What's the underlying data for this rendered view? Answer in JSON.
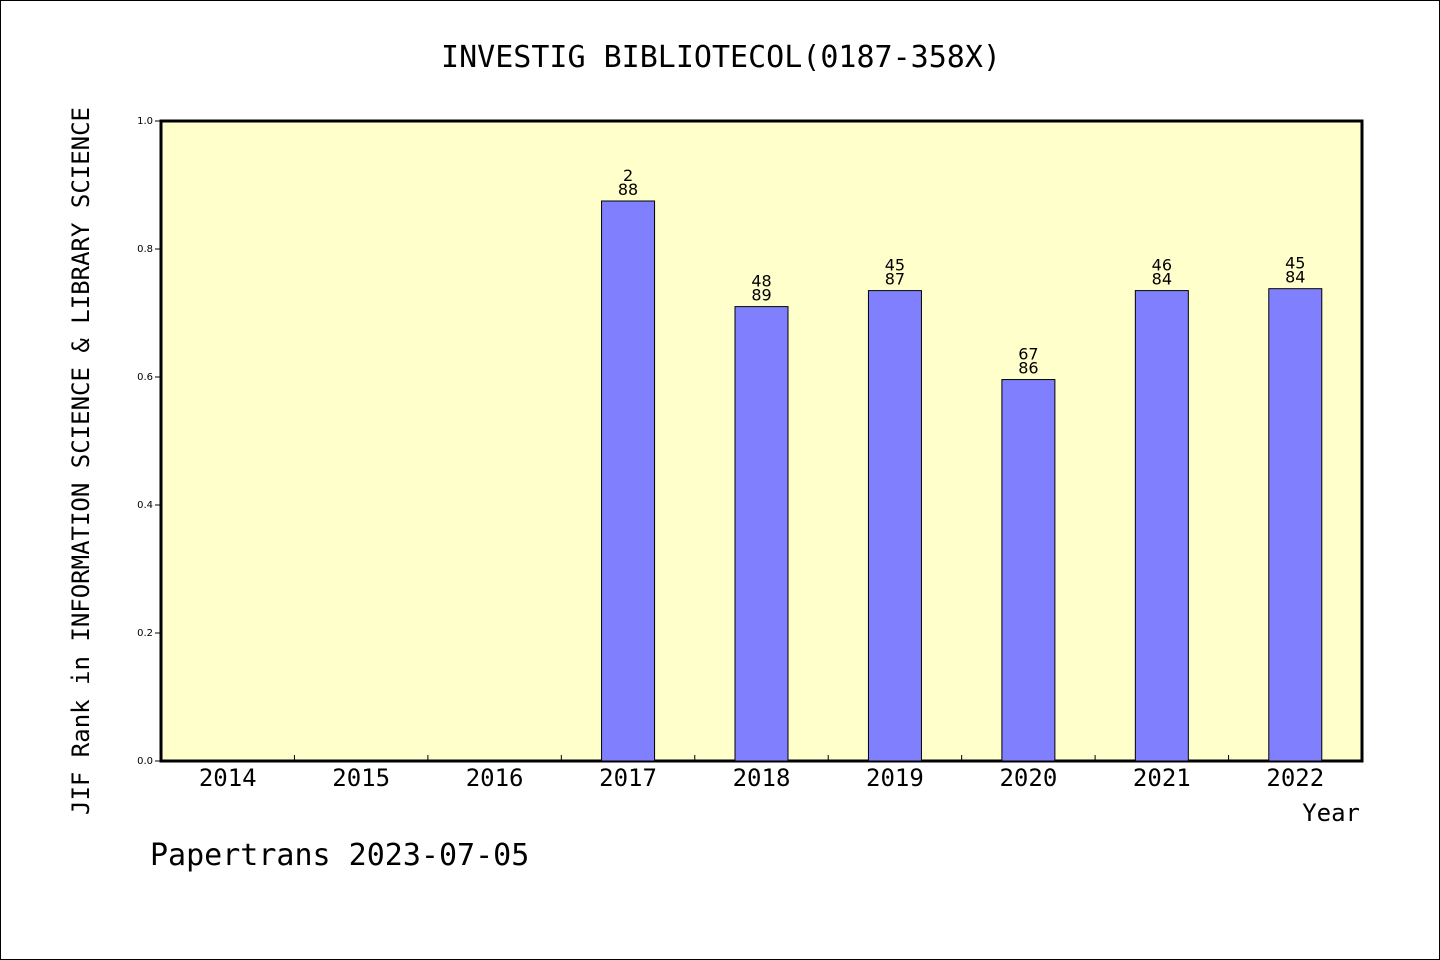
{
  "chart_data": {
    "type": "bar",
    "title": "INVESTIG BIBLIOTECOL(0187-358X)",
    "xlabel": "Year",
    "ylabel": "JIF Rank in INFORMATION SCIENCE & LIBRARY SCIENCE",
    "categories": [
      "2014",
      "2015",
      "2016",
      "2017",
      "2018",
      "2019",
      "2020",
      "2021",
      "2022"
    ],
    "values": [
      null,
      null,
      null,
      0.875,
      0.71,
      0.735,
      0.596,
      0.735,
      0.738
    ],
    "bar_labels": [
      [
        "",
        ""
      ],
      [
        "",
        ""
      ],
      [
        "",
        ""
      ],
      [
        "2",
        "88"
      ],
      [
        "48",
        "89"
      ],
      [
        "45",
        "87"
      ],
      [
        "67",
        "86"
      ],
      [
        "46",
        "84"
      ],
      [
        "45",
        "84"
      ]
    ],
    "ylim": [
      0,
      1.0
    ],
    "yticks": [
      "0.0",
      "0.2",
      "0.4",
      "0.6",
      "0.8",
      "1.0"
    ],
    "grid": false,
    "colors": {
      "plot_background": "#ffffcc",
      "bar_fill": "#8080ff",
      "bar_stroke": "#000000"
    }
  },
  "footer": {
    "credit": "Papertrans 2023-07-05"
  }
}
